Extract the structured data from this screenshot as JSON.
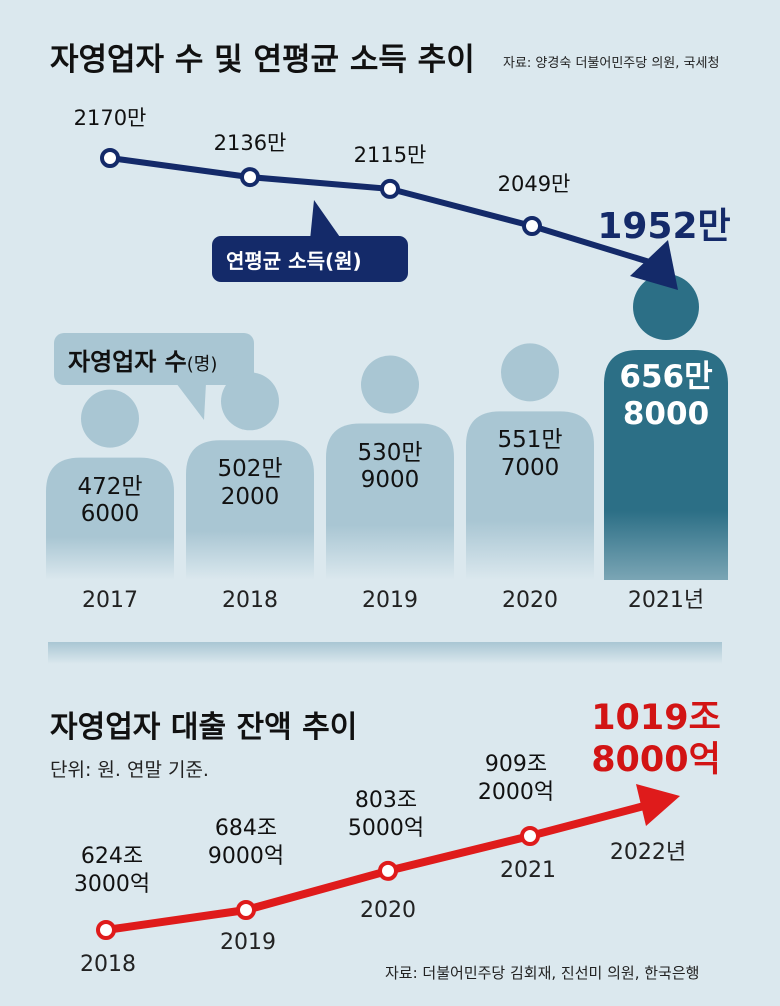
{
  "top": {
    "title": "자영업자 수 및 연평균 소득 추이",
    "source": "자료: 양경숙 더불어민주당 의원, 국세청"
  },
  "bottom": {
    "title": "자영업자 대출 잔액 추이",
    "unit_note": "단위: 원. 연말 기준.",
    "source": "자료: 더불어민주당 김회재, 진선미 의원, 한국은행"
  },
  "colors": {
    "background": "#dbe8ee",
    "income_line": "#142a69",
    "person_light": "#a9c6d3",
    "person_highlight": "#2c6f86",
    "loan_line": "#df1b1b",
    "highlight_text": "#d21414"
  },
  "chart_data": [
    {
      "type": "line",
      "series_label": "연평균 소득(원)",
      "categories": [
        "2017",
        "2018",
        "2019",
        "2020",
        "2021년"
      ],
      "values": [
        21700000,
        21360000,
        21150000,
        20490000,
        19520000
      ],
      "data_labels": [
        "2170만",
        "2136만",
        "2115만",
        "2049만",
        "1952만"
      ],
      "highlight_last": true,
      "arrow_at_end": true
    },
    {
      "type": "bar",
      "series_label": "자영업자 수",
      "series_unit": "(명)",
      "categories": [
        "2017",
        "2018",
        "2019",
        "2020",
        "2021년"
      ],
      "values": [
        4726000,
        5022000,
        5309000,
        5517000,
        6568000
      ],
      "data_labels": [
        [
          "472만",
          "6000"
        ],
        [
          "502만",
          "2000"
        ],
        [
          "530만",
          "9000"
        ],
        [
          "551만",
          "7000"
        ],
        [
          "656만",
          "8000"
        ]
      ],
      "style": "person-pictogram",
      "highlight_last": true
    },
    {
      "type": "line",
      "title": "자영업자 대출 잔액 추이",
      "categories": [
        "2018",
        "2019",
        "2020",
        "2021",
        "2022년"
      ],
      "values": [
        6243000,
        6849000,
        8035000,
        9092000,
        10198000
      ],
      "value_unit": "억 원",
      "data_labels": [
        [
          "624조",
          "3000억"
        ],
        [
          "684조",
          "9000억"
        ],
        [
          "803조",
          "5000억"
        ],
        [
          "909조",
          "2000억"
        ],
        [
          "1019조",
          "8000억"
        ]
      ],
      "highlight_last": true,
      "arrow_at_end": true
    }
  ]
}
